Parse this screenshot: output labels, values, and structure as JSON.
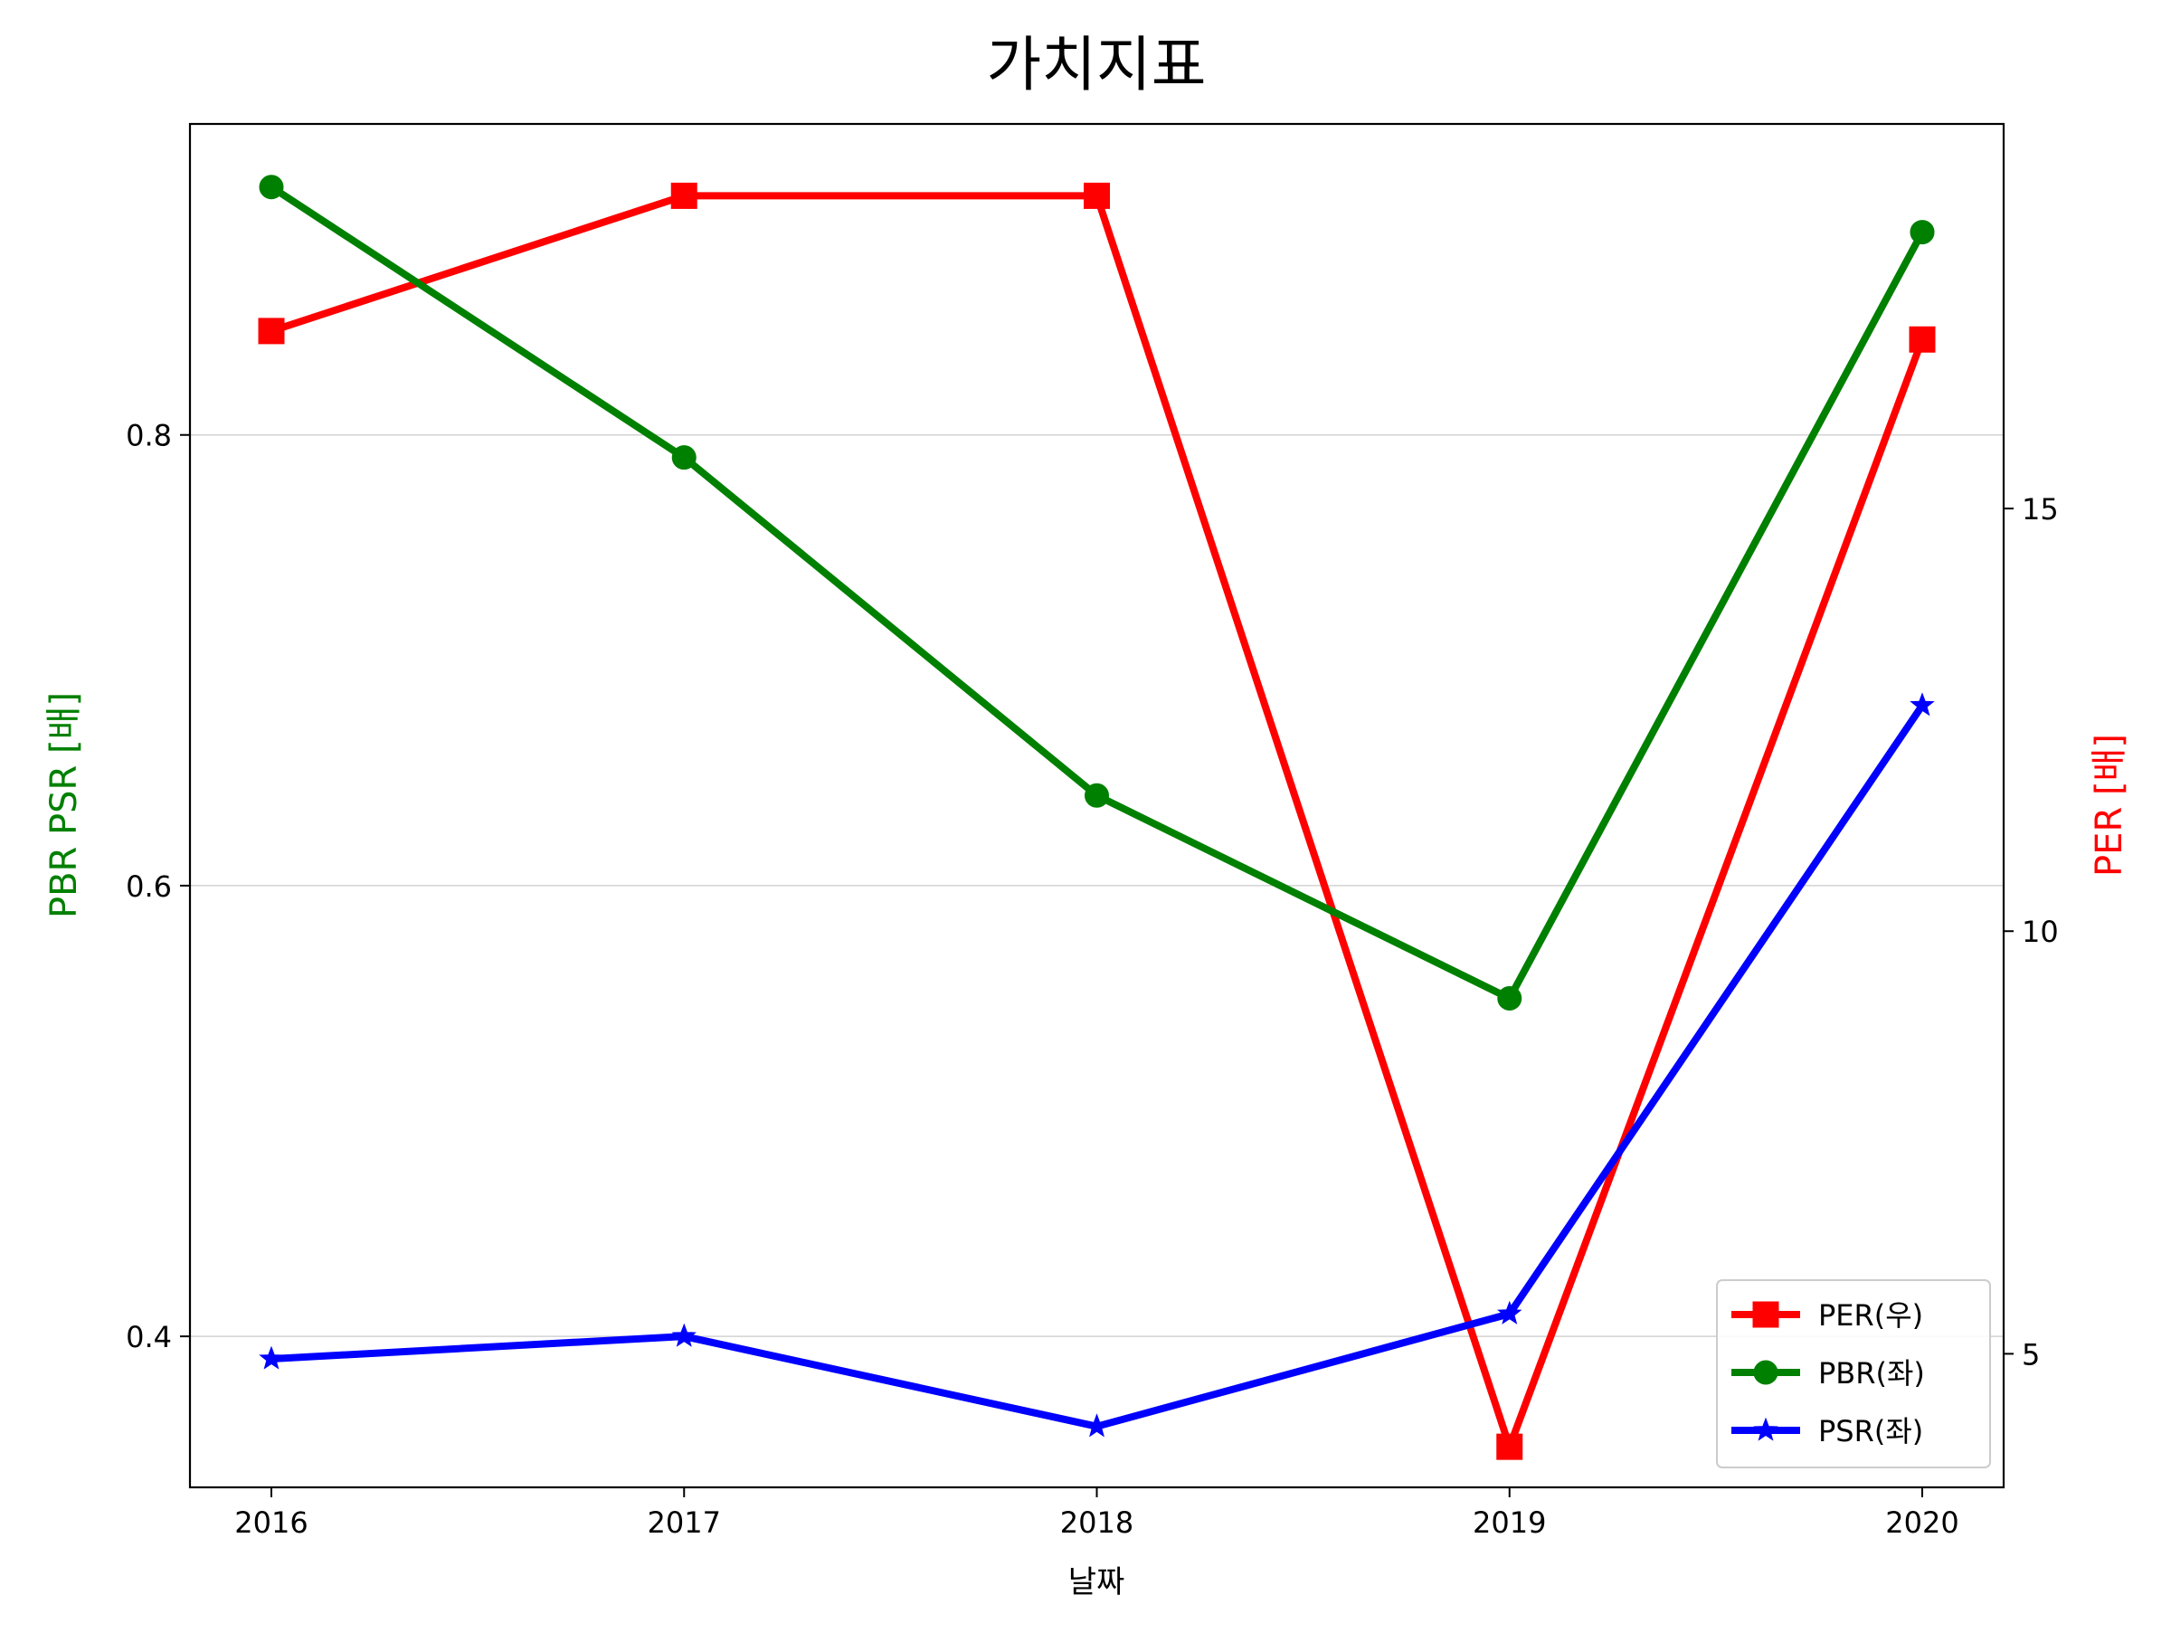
{
  "chart_data": {
    "type": "line",
    "title": "가치지표",
    "xlabel": "날짜",
    "ylabel_left": "PBR PSR [배]",
    "ylabel_right": "PER [배]",
    "categories": [
      "2016",
      "2017",
      "2018",
      "2019",
      "2020"
    ],
    "left_axis": {
      "ylim": [
        0.333,
        0.938
      ],
      "ticks": [
        0.4,
        0.6,
        0.8
      ],
      "tick_labels": [
        "0.4",
        "0.6",
        "0.8"
      ],
      "label_color": "#008000",
      "grid": true
    },
    "right_axis": {
      "ylim": [
        3.42,
        19.55
      ],
      "ticks": [
        5,
        10,
        15
      ],
      "tick_labels": [
        "5",
        "10",
        "15"
      ],
      "label_color": "#ff0000"
    },
    "series": [
      {
        "name": "PER(우)",
        "axis": "right",
        "color": "#ff0000",
        "marker": "square",
        "values": [
          17.1,
          18.7,
          18.7,
          3.9,
          17.0
        ]
      },
      {
        "name": "PBR(좌)",
        "axis": "left",
        "color": "#008000",
        "marker": "circle",
        "values": [
          0.91,
          0.79,
          0.64,
          0.55,
          0.89
        ]
      },
      {
        "name": "PSR(좌)",
        "axis": "left",
        "color": "#0000ff",
        "marker": "star",
        "values": [
          0.39,
          0.4,
          0.36,
          0.41,
          0.68
        ]
      }
    ],
    "legend": {
      "position": "lower-right"
    }
  }
}
